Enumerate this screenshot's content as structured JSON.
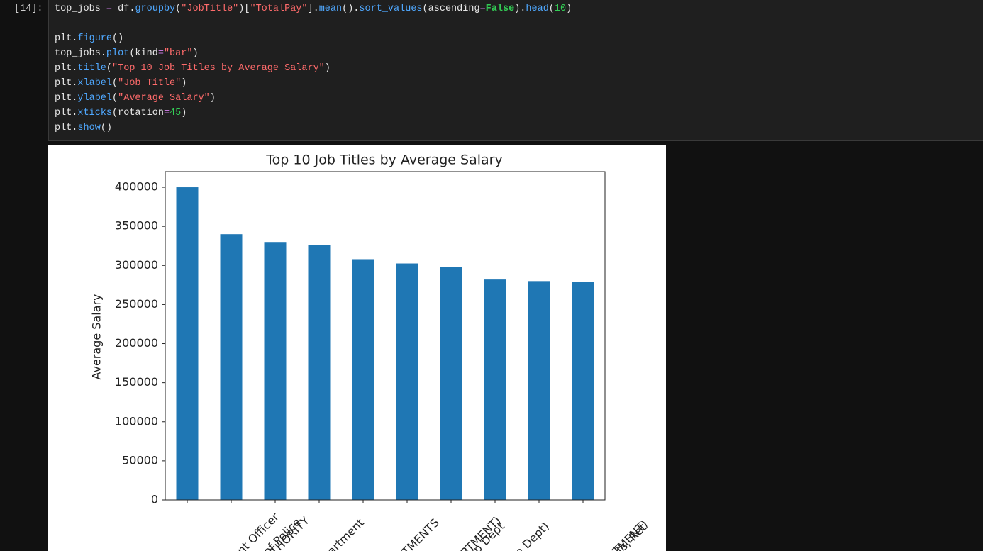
{
  "cell": {
    "prompt": "[14]:",
    "code": [
      [
        {
          "text": "top_jobs ",
          "color": "#e6e6e6"
        },
        {
          "text": "=",
          "color": "#c678dd"
        },
        {
          "text": " df.",
          "color": "#e6e6e6"
        },
        {
          "text": "groupby",
          "color": "#4fa8ff"
        },
        {
          "text": "(",
          "color": "#e6e6e6"
        },
        {
          "text": "\"JobTitle\"",
          "color": "#ff6b6b"
        },
        {
          "text": ")[",
          "color": "#e6e6e6"
        },
        {
          "text": "\"TotalPay\"",
          "color": "#ff6b6b"
        },
        {
          "text": "].",
          "color": "#e6e6e6"
        },
        {
          "text": "mean",
          "color": "#4fa8ff"
        },
        {
          "text": "().",
          "color": "#e6e6e6"
        },
        {
          "text": "sort_values",
          "color": "#4fa8ff"
        },
        {
          "text": "(ascending",
          "color": "#e6e6e6"
        },
        {
          "text": "=",
          "color": "#c678dd"
        },
        {
          "text": "False",
          "color": "#33cc55"
        },
        {
          "text": ").",
          "color": "#e6e6e6"
        },
        {
          "text": "head",
          "color": "#4fa8ff"
        },
        {
          "text": "(",
          "color": "#e6e6e6"
        },
        {
          "text": "10",
          "color": "#33cc55"
        },
        {
          "text": ")",
          "color": "#e6e6e6"
        }
      ],
      [
        {
          "text": "plt.",
          "color": "#e6e6e6"
        },
        {
          "text": "figure",
          "color": "#4fa8ff"
        },
        {
          "text": "()",
          "color": "#e6e6e6"
        }
      ],
      [
        {
          "text": "top_jobs.",
          "color": "#e6e6e6"
        },
        {
          "text": "plot",
          "color": "#4fa8ff"
        },
        {
          "text": "(kind",
          "color": "#e6e6e6"
        },
        {
          "text": "=",
          "color": "#c678dd"
        },
        {
          "text": "\"bar\"",
          "color": "#ff6b6b"
        },
        {
          "text": ")",
          "color": "#e6e6e6"
        }
      ],
      [
        {
          "text": "plt.",
          "color": "#e6e6e6"
        },
        {
          "text": "title",
          "color": "#4fa8ff"
        },
        {
          "text": "(",
          "color": "#e6e6e6"
        },
        {
          "text": "\"Top 10 Job Titles by Average Salary\"",
          "color": "#ff6b6b"
        },
        {
          "text": ")",
          "color": "#e6e6e6"
        }
      ],
      [
        {
          "text": "plt.",
          "color": "#e6e6e6"
        },
        {
          "text": "xlabel",
          "color": "#4fa8ff"
        },
        {
          "text": "(",
          "color": "#e6e6e6"
        },
        {
          "text": "\"Job Title\"",
          "color": "#ff6b6b"
        },
        {
          "text": ")",
          "color": "#e6e6e6"
        }
      ],
      [
        {
          "text": "plt.",
          "color": "#e6e6e6"
        },
        {
          "text": "ylabel",
          "color": "#4fa8ff"
        },
        {
          "text": "(",
          "color": "#e6e6e6"
        },
        {
          "text": "\"Average Salary\"",
          "color": "#ff6b6b"
        },
        {
          "text": ")",
          "color": "#e6e6e6"
        }
      ],
      [
        {
          "text": "plt.",
          "color": "#e6e6e6"
        },
        {
          "text": "xticks",
          "color": "#4fa8ff"
        },
        {
          "text": "(rotation",
          "color": "#e6e6e6"
        },
        {
          "text": "=",
          "color": "#c678dd"
        },
        {
          "text": "45",
          "color": "#33cc55"
        },
        {
          "text": ")",
          "color": "#e6e6e6"
        }
      ],
      [
        {
          "text": "plt.",
          "color": "#e6e6e6"
        },
        {
          "text": "show",
          "color": "#4fa8ff"
        },
        {
          "text": "()",
          "color": "#e6e6e6"
        }
      ]
    ]
  },
  "chart_data": {
    "type": "bar",
    "title": "Top 10 Job Titles by Average Salary",
    "y_label": "Average Salary",
    "categories": [
      "nt Officer",
      "of Police",
      "THORITY",
      "partment",
      "STMENTS",
      "RTMENT)",
      "nsp Dept",
      "Fire Dept)",
      "ents, Ret",
      "RTMENT)"
    ],
    "values": [
      400000,
      340000,
      330000,
      326500,
      308000,
      302500,
      298000,
      282000,
      280000,
      278500
    ],
    "color": "#1f77b4",
    "ylim": [
      0,
      420000
    ],
    "yticks": [
      0,
      50000,
      100000,
      150000,
      200000,
      250000,
      300000,
      350000,
      400000
    ],
    "grid": false
  }
}
